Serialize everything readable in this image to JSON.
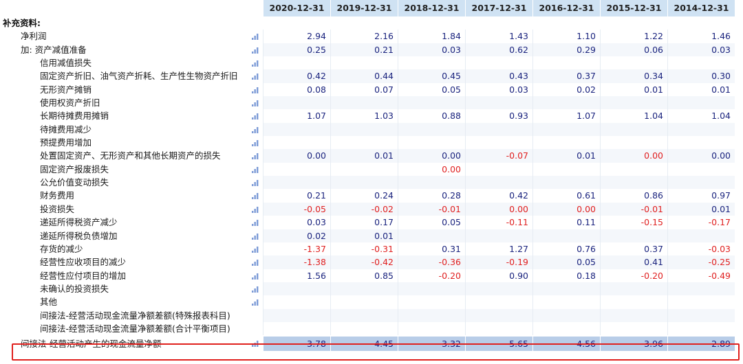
{
  "header": {
    "years": [
      "2020-12-31",
      "2019-12-31",
      "2018-12-31",
      "2017-12-31",
      "2016-12-31",
      "2015-12-31",
      "2014-12-31"
    ]
  },
  "section_title": "补充资料:",
  "rows": [
    {
      "label": "净利润",
      "level": 1,
      "values": [
        "2.94",
        "2.16",
        "1.84",
        "1.43",
        "1.10",
        "1.22",
        "1.46"
      ]
    },
    {
      "label": "加: 资产减值准备",
      "level": 1,
      "values": [
        "0.25",
        "0.21",
        "0.03",
        "0.62",
        "0.29",
        "0.06",
        "0.03"
      ]
    },
    {
      "label": "信用减值损失",
      "level": 2,
      "values": [
        "",
        "",
        "",
        "",
        "",
        "",
        ""
      ]
    },
    {
      "label": "固定资产折旧、油气资产折耗、生产性生物资产折旧",
      "level": 2,
      "values": [
        "0.42",
        "0.44",
        "0.45",
        "0.43",
        "0.37",
        "0.34",
        "0.30"
      ]
    },
    {
      "label": "无形资产摊销",
      "level": 2,
      "values": [
        "0.08",
        "0.07",
        "0.05",
        "0.03",
        "0.02",
        "0.01",
        "0.01"
      ]
    },
    {
      "label": "使用权资产折旧",
      "level": 2,
      "values": [
        "",
        "",
        "",
        "",
        "",
        "",
        ""
      ]
    },
    {
      "label": "长期待摊费用摊销",
      "level": 2,
      "values": [
        "1.07",
        "1.03",
        "0.88",
        "0.93",
        "1.07",
        "1.04",
        "1.04"
      ]
    },
    {
      "label": "待摊费用减少",
      "level": 2,
      "values": [
        "",
        "",
        "",
        "",
        "",
        "",
        ""
      ]
    },
    {
      "label": "预提费用增加",
      "level": 2,
      "values": [
        "",
        "",
        "",
        "",
        "",
        "",
        ""
      ]
    },
    {
      "label": "处置固定资产、无形资产和其他长期资产的损失",
      "level": 2,
      "values": [
        "0.00",
        "0.01",
        "0.00",
        "-0.07",
        "0.01",
        "0.00",
        "0.00"
      ],
      "neg": [
        false,
        false,
        false,
        true,
        false,
        true,
        false
      ]
    },
    {
      "label": "固定资产报废损失",
      "level": 2,
      "values": [
        "",
        "",
        "0.00",
        "",
        "",
        "",
        ""
      ],
      "neg": [
        false,
        false,
        true,
        false,
        false,
        false,
        false
      ]
    },
    {
      "label": "公允价值变动损失",
      "level": 2,
      "values": [
        "",
        "",
        "",
        "",
        "",
        "",
        ""
      ]
    },
    {
      "label": "财务费用",
      "level": 2,
      "values": [
        "0.21",
        "0.24",
        "0.28",
        "0.42",
        "0.61",
        "0.86",
        "0.97"
      ]
    },
    {
      "label": "投资损失",
      "level": 2,
      "values": [
        "-0.05",
        "-0.02",
        "-0.01",
        "0.00",
        "0.00",
        "-0.01",
        "0.01"
      ],
      "neg": [
        true,
        true,
        true,
        true,
        true,
        true,
        false
      ]
    },
    {
      "label": "递延所得税资产减少",
      "level": 2,
      "values": [
        "0.03",
        "0.17",
        "0.05",
        "-0.11",
        "0.11",
        "-0.15",
        "-0.17"
      ],
      "neg": [
        false,
        false,
        false,
        true,
        false,
        true,
        true
      ]
    },
    {
      "label": "递延所得税负债增加",
      "level": 2,
      "values": [
        "0.02",
        "0.01",
        "",
        "",
        "",
        "",
        ""
      ]
    },
    {
      "label": "存货的减少",
      "level": 2,
      "values": [
        "-1.37",
        "-0.31",
        "0.31",
        "1.27",
        "0.76",
        "0.37",
        "-0.03"
      ],
      "neg": [
        true,
        true,
        false,
        false,
        false,
        false,
        true
      ]
    },
    {
      "label": "经营性应收项目的减少",
      "level": 2,
      "values": [
        "-1.38",
        "-0.42",
        "-0.36",
        "-0.19",
        "0.05",
        "0.41",
        "-0.25"
      ],
      "neg": [
        true,
        true,
        true,
        true,
        false,
        false,
        true
      ]
    },
    {
      "label": "经营性应付项目的增加",
      "level": 2,
      "values": [
        "1.56",
        "0.85",
        "-0.20",
        "0.90",
        "0.18",
        "-0.20",
        "-0.49"
      ],
      "neg": [
        false,
        false,
        true,
        false,
        false,
        true,
        true
      ]
    },
    {
      "label": "未确认的投资损失",
      "level": 2,
      "values": [
        "",
        "",
        "",
        "",
        "",
        "",
        ""
      ]
    },
    {
      "label": "其他",
      "level": 2,
      "values": [
        "",
        "",
        "",
        "",
        "",
        "",
        ""
      ]
    },
    {
      "label": "间接法-经营活动现金流量净额差额(特殊报表科目)",
      "level": 2,
      "values": [
        "",
        "",
        "",
        "",
        "",
        "",
        ""
      ],
      "no_icon": true
    },
    {
      "label": "间接法-经营活动现金流量净额差额(合计平衡项目)",
      "level": 2,
      "values": [
        "",
        "",
        "",
        "",
        "",
        "",
        ""
      ],
      "no_icon": true
    }
  ],
  "total_row": {
    "label": "间接法-经营活动产生的现金流量净额",
    "values": [
      "3.78",
      "4.45",
      "3.32",
      "5.65",
      "4.56",
      "3.96",
      "2.89"
    ]
  },
  "colors": {
    "header_bg": "#cfe2f3",
    "positive_value": "#1a237e",
    "negative_value": "#e02020",
    "highlight_frame": "#e0201d",
    "chart_icon": "#7b9ad6"
  }
}
